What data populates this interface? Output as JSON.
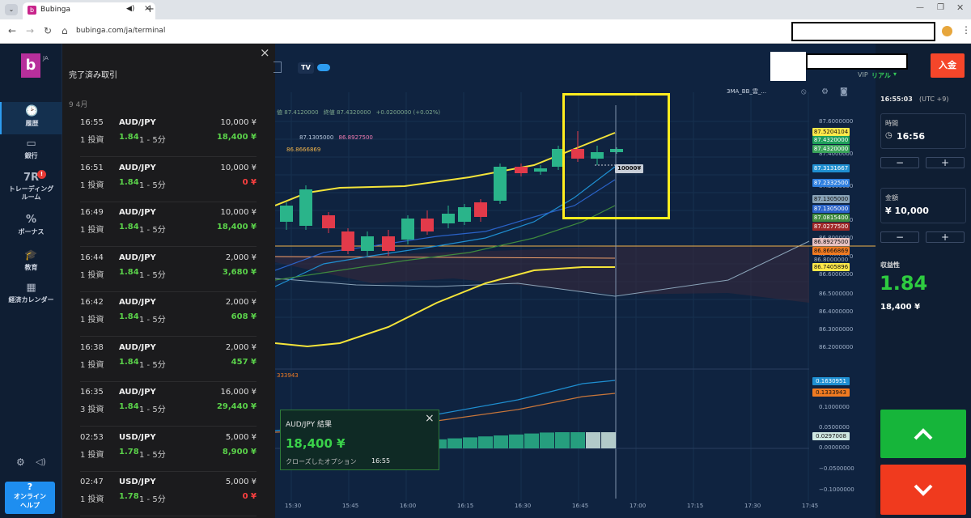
{
  "browser": {
    "tab_title": "Bubinga",
    "url": "bubinga.com/ja/terminal"
  },
  "nav": {
    "logo_letter": "b",
    "lang": "JA",
    "items": [
      {
        "label": "履歴",
        "icon": "history-icon"
      },
      {
        "label": "銀行",
        "icon": "wallet-icon"
      },
      {
        "label": "トレーディングルーム",
        "icon": "trading-room-icon",
        "badge": "!"
      },
      {
        "label": "ボーナス",
        "icon": "bonus-icon"
      },
      {
        "label": "教育",
        "icon": "education-icon"
      },
      {
        "label": "経済カレンダー",
        "icon": "calendar-icon"
      }
    ],
    "help_label_1": "オンライン",
    "help_label_2": "ヘルプ",
    "help_glyph": "?"
  },
  "trades_panel": {
    "title": "完了済み取引",
    "month": "9 4月",
    "trades": [
      {
        "time": "16:55",
        "pair": "AUD/JPY",
        "amount": "10,000 ¥",
        "count": "1 投資",
        "payout": "1.84",
        "duration": "1 - 5分",
        "result": "18,400 ¥",
        "win": true
      },
      {
        "time": "16:51",
        "pair": "AUD/JPY",
        "amount": "10,000 ¥",
        "count": "1 投資",
        "payout": "1.84",
        "duration": "1 - 5分",
        "result": "0 ¥",
        "win": false
      },
      {
        "time": "16:49",
        "pair": "AUD/JPY",
        "amount": "10,000 ¥",
        "count": "1 投資",
        "payout": "1.84",
        "duration": "1 - 5分",
        "result": "18,400 ¥",
        "win": true
      },
      {
        "time": "16:44",
        "pair": "AUD/JPY",
        "amount": "2,000 ¥",
        "count": "1 投資",
        "payout": "1.84",
        "duration": "1 - 5分",
        "result": "3,680 ¥",
        "win": true
      },
      {
        "time": "16:42",
        "pair": "AUD/JPY",
        "amount": "2,000 ¥",
        "count": "1 投資",
        "payout": "1.84",
        "duration": "1 - 5分",
        "result": "608 ¥",
        "win": true
      },
      {
        "time": "16:38",
        "pair": "AUD/JPY",
        "amount": "2,000 ¥",
        "count": "1 投資",
        "payout": "1.84",
        "duration": "1 - 5分",
        "result": "457 ¥",
        "win": true
      },
      {
        "time": "16:35",
        "pair": "AUD/JPY",
        "amount": "16,000 ¥",
        "count": "3 投資",
        "payout": "1.84",
        "duration": "1 - 5分",
        "result": "29,440 ¥",
        "win": true
      },
      {
        "time": "02:53",
        "pair": "USD/JPY",
        "amount": "5,000 ¥",
        "count": "1 投資",
        "payout": "1.78",
        "duration": "1 - 5分",
        "result": "8,900 ¥",
        "win": true
      },
      {
        "time": "02:47",
        "pair": "USD/JPY",
        "amount": "5,000 ¥",
        "count": "1 投資",
        "payout": "1.78",
        "duration": "1 - 5分",
        "result": "0 ¥",
        "win": false
      }
    ]
  },
  "chart": {
    "indicator_name": "3MA_BB_雲_...",
    "header_line1_label_1": "値",
    "header_line1_value_1": "87.4120000",
    "header_line1_label_2": "終値",
    "header_line1_value_2": "87.4320000",
    "header_line1_change": "+0.0200000 (+0.02%)",
    "header_line2_a": "87.1305000",
    "header_line2_b": "86.8927500",
    "header_line3": "86.8666869",
    "osc_label": "333943",
    "trade_marker": "10000¥",
    "y_ticks": [
      "87.6000000",
      "87.4000000",
      "87.2000000",
      "87.0000000",
      "86.8000000",
      "86.7000000",
      "86.6000000",
      "86.5000000",
      "86.4000000",
      "86.3000000",
      "86.2000000"
    ],
    "price_labels": [
      {
        "text": "87.5204104",
        "bg": "#ffe94a",
        "fg": "#111"
      },
      {
        "text": "87.4320000",
        "bg": "#1f9e5a",
        "fg": "#fff"
      },
      {
        "text": "87.4320000",
        "bg": "#3aa35a",
        "fg": "#fff"
      },
      {
        "text": "87.3131667",
        "bg": "#1f8fd1",
        "fg": "#fff"
      },
      {
        "text": "87.2332500",
        "bg": "#2f7fe0",
        "fg": "#fff"
      },
      {
        "text": "87.1305000",
        "bg": "#8aa3b8",
        "fg": "#111"
      },
      {
        "text": "87.1305000",
        "bg": "#2a62c8",
        "fg": "#fff"
      },
      {
        "text": "87.0815400",
        "bg": "#3e8a3e",
        "fg": "#fff"
      },
      {
        "text": "87.0277500",
        "bg": "#a02828",
        "fg": "#fff"
      },
      {
        "text": "86.8927500",
        "bg": "#e8c2c2",
        "fg": "#111"
      },
      {
        "text": "86.8666869",
        "bg": "#f07b22",
        "fg": "#111"
      },
      {
        "text": "86.8000000",
        "bg": "#0f2340",
        "fg": "#9fb0c8"
      },
      {
        "text": "86.7405896",
        "bg": "#ffe94a",
        "fg": "#111"
      }
    ],
    "osc_ticks": [
      "0.1000000",
      "0.0500000",
      "0.0000000",
      "−0.0500000",
      "−0.1000000"
    ],
    "osc_labels": [
      {
        "text": "0.1630951",
        "bg": "#1f8fd1",
        "fg": "#fff"
      },
      {
        "text": "0.1333943",
        "bg": "#f07b22",
        "fg": "#111"
      },
      {
        "text": "0.0297008",
        "bg": "#cfe8e2",
        "fg": "#111"
      }
    ],
    "x_ticks": [
      "15:30",
      "15:45",
      "16:00",
      "16:15",
      "16:30",
      "16:45",
      "17:00",
      "17:15",
      "17:30",
      "17:45"
    ]
  },
  "result_popup": {
    "title": "AUD/JPY 結果",
    "amount": "18,400 ¥",
    "closed_label": "クローズしたオプション",
    "closed_time": "16:55"
  },
  "right_panel": {
    "clock": "16:55:03",
    "tz": "(UTC +9)",
    "time_label": "時間",
    "time_value": "16:56",
    "amount_label": "金額",
    "amount_value": "¥ 10,000",
    "profit_label": "収益性",
    "profit_rate": "1.84",
    "profit_amount": "18,400 ¥",
    "vip": "VIP",
    "account": "リアル",
    "deposit": "入金",
    "minus": "−",
    "plus": "+"
  },
  "colors": {
    "up": "#2ab48a",
    "down": "#e23a4a",
    "call": "#16b53a",
    "put": "#f03a1e",
    "accent": "#f5462a"
  }
}
